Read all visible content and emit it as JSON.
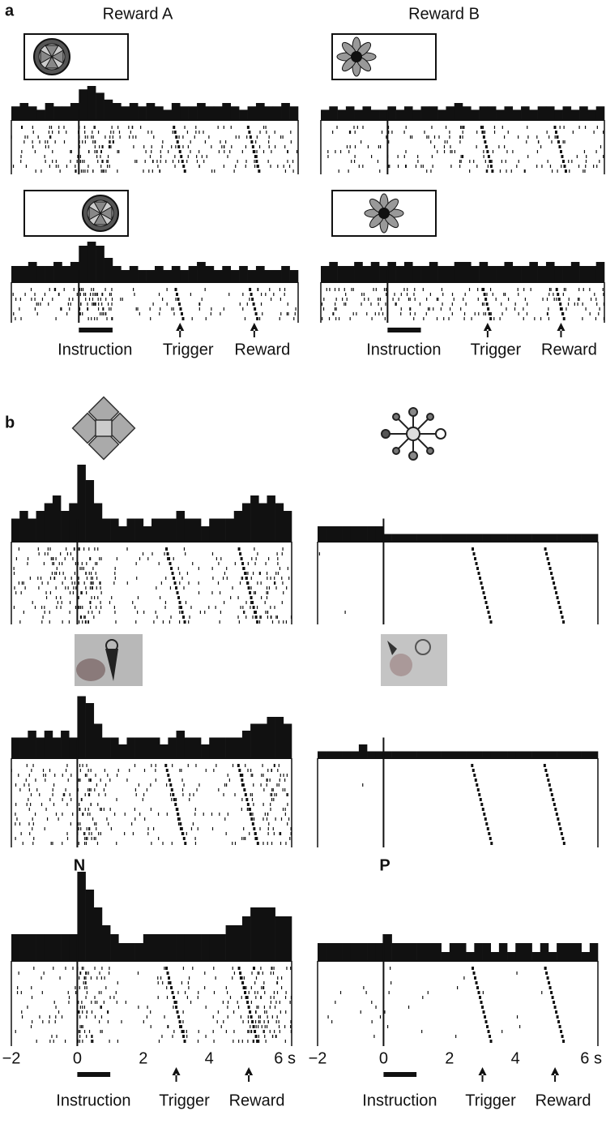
{
  "time_axis": {
    "xlim": [
      -2,
      6.5
    ],
    "xticks": [
      {
        "value": -2,
        "label": "−2"
      },
      0,
      2,
      4,
      {
        "value": 6,
        "label": "6 s"
      }
    ]
  },
  "events": [
    {
      "label": "Instruction",
      "start": 0,
      "end": 1
    },
    {
      "label": "Trigger",
      "time": 3
    },
    {
      "label": "Reward",
      "time": 5.2
    }
  ],
  "panel_a": {
    "label": "a",
    "titles": [
      "Reward A",
      "Reward B"
    ],
    "plots": [
      [
        [
          4,
          5,
          4,
          3,
          5,
          4,
          4,
          5,
          9,
          10,
          8,
          6,
          5,
          4,
          5,
          4,
          5,
          4,
          3,
          5,
          4,
          4,
          5,
          4,
          4,
          5,
          4,
          3,
          4,
          5,
          4,
          4,
          5,
          4
        ],
        [
          3,
          4,
          3,
          4,
          3,
          4,
          3,
          3,
          4,
          3,
          4,
          3,
          4,
          4,
          3,
          4,
          5,
          4,
          3,
          4,
          4,
          3,
          4,
          3,
          4,
          3,
          4,
          4,
          3,
          4,
          3,
          4,
          3,
          4
        ]
      ],
      [
        [
          4,
          4,
          5,
          4,
          4,
          5,
          4,
          5,
          9,
          10,
          9,
          6,
          4,
          3,
          4,
          3,
          3,
          4,
          3,
          4,
          3,
          4,
          5,
          4,
          3,
          4,
          3,
          4,
          3,
          4,
          3,
          3,
          4,
          3
        ],
        [
          4,
          5,
          4,
          4,
          5,
          4,
          5,
          4,
          5,
          4,
          5,
          4,
          4,
          5,
          4,
          4,
          5,
          5,
          4,
          5,
          4,
          4,
          5,
          4,
          4,
          5,
          4,
          5,
          4,
          4,
          5,
          4,
          4,
          5
        ]
      ]
    ]
  },
  "panel_b": {
    "label": "b",
    "titles": [
      "N",
      "P"
    ],
    "plots": [
      [
        [
          3,
          4,
          3,
          4,
          5,
          6,
          4,
          5,
          10,
          8,
          5,
          3,
          3,
          2,
          3,
          3,
          2,
          3,
          3,
          3,
          4,
          3,
          3,
          2,
          3,
          3,
          3,
          4,
          5,
          6,
          5,
          6,
          5,
          4
        ],
        [
          2,
          2,
          2,
          2,
          2,
          2,
          2,
          2,
          1,
          1,
          1,
          1,
          1,
          1,
          1,
          1,
          1,
          1,
          1,
          1,
          1,
          1,
          1,
          1,
          1,
          1,
          1,
          1,
          1,
          1,
          1,
          1,
          1,
          1
        ]
      ],
      [
        [
          3,
          3,
          4,
          3,
          4,
          3,
          4,
          3,
          9,
          8,
          5,
          3,
          3,
          2,
          3,
          3,
          3,
          3,
          2,
          3,
          4,
          3,
          3,
          2,
          3,
          3,
          3,
          3,
          4,
          5,
          5,
          6,
          6,
          5
        ],
        [
          1,
          1,
          1,
          1,
          1,
          2,
          1,
          1,
          1,
          1,
          1,
          1,
          1,
          1,
          1,
          1,
          1,
          1,
          1,
          1,
          1,
          1,
          1,
          1,
          1,
          1,
          1,
          1,
          1,
          1,
          1,
          1,
          1,
          1
        ]
      ],
      [
        [
          3,
          3,
          3,
          3,
          3,
          3,
          3,
          3,
          10,
          8,
          6,
          4,
          3,
          2,
          2,
          2,
          3,
          3,
          3,
          3,
          3,
          3,
          3,
          3,
          3,
          3,
          4,
          4,
          5,
          6,
          6,
          6,
          5,
          5
        ],
        [
          2,
          2,
          2,
          2,
          2,
          2,
          2,
          2,
          3,
          2,
          2,
          2,
          2,
          2,
          2,
          1,
          2,
          2,
          1,
          2,
          2,
          1,
          2,
          1,
          2,
          2,
          1,
          2,
          1,
          2,
          2,
          2,
          1,
          2
        ]
      ]
    ]
  }
}
